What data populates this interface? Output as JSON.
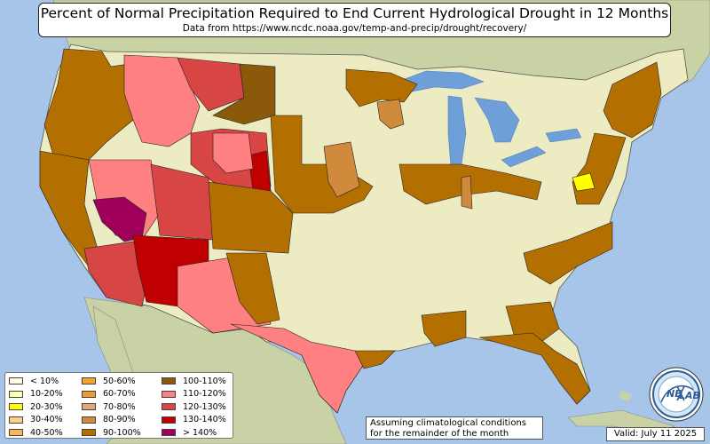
{
  "title": {
    "main": "Percent of Normal Precipitation Required to End Current Hydrological Drought in 12 Months",
    "subtitle": "Data from https://www.ncdc.noaa.gov/temp-and-precip/drought/recovery/"
  },
  "legend": {
    "columns": [
      [
        {
          "label": "< 10%",
          "color": "#fffde6"
        },
        {
          "label": "10-20%",
          "color": "#ffffb0"
        },
        {
          "label": "20-30%",
          "color": "#ffff00"
        },
        {
          "label": "30-40%",
          "color": "#ffcf8a"
        },
        {
          "label": "40-50%",
          "color": "#ffb45a"
        }
      ],
      [
        {
          "label": "50-60%",
          "color": "#f7a036"
        },
        {
          "label": "60-70%",
          "color": "#f49a2a"
        },
        {
          "label": "70-80%",
          "color": "#e0a87a"
        },
        {
          "label": "80-90%",
          "color": "#d08a3c"
        },
        {
          "label": "90-100%",
          "color": "#b36f00"
        }
      ],
      [
        {
          "label": "100-110%",
          "color": "#8a5a0a"
        },
        {
          "label": "110-120%",
          "color": "#ff8080"
        },
        {
          "label": "120-130%",
          "color": "#d84545"
        },
        {
          "label": "130-140%",
          "color": "#c00000"
        },
        {
          "label": "> 140%",
          "color": "#a0005a"
        }
      ]
    ]
  },
  "note": {
    "line1": "Assuming climatological conditions",
    "line2": "for the remainder of the month"
  },
  "valid": "Valid: July 11 2025",
  "logo": {
    "text": "NEXLAB",
    "text_part1": "NE",
    "text_part2": "LAB"
  },
  "colors": {
    "ocean": "#a7c5e8",
    "land_us": "#ecebc2",
    "land_foreign": "#c9d2a4",
    "lake": "#6f9fd8",
    "class_90_100": "#b36f00",
    "class_100_110": "#8a5a0a",
    "class_80_90": "#d08a3c",
    "class_110_120": "#ff8080",
    "class_120_130": "#d84545",
    "class_130_140": "#c00000",
    "class_gt_140": "#a0005a",
    "class_20_30": "#ffff00"
  }
}
